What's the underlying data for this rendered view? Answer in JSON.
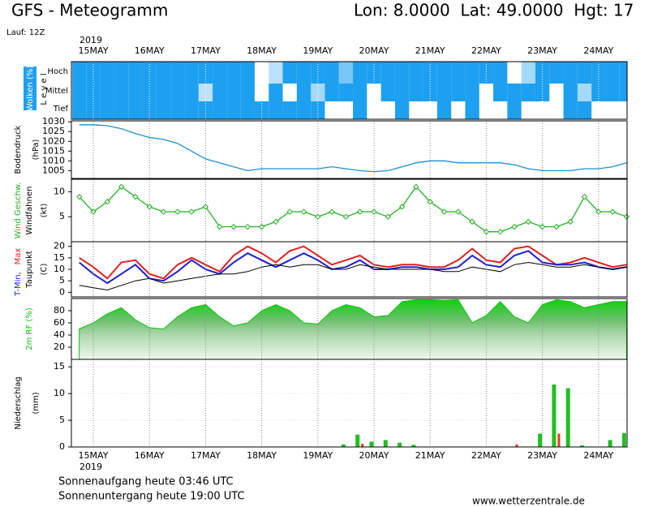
{
  "header": {
    "title": "GFS - Meteogramm",
    "location": "Lon: 8.0000  Lat: 49.0000  Hgt: 17",
    "run": "Lauf: 12Z",
    "year": "2019"
  },
  "chart_data": [
    {
      "type": "clouds",
      "y_label": "Wolken (%)",
      "level_label": "L e v e l",
      "color": "#1ea0f0",
      "series": [
        {
          "name": "Hoch",
          "values": [
            100,
            100,
            100,
            100,
            100,
            100,
            100,
            100,
            100,
            100,
            100,
            100,
            100,
            0,
            30,
            100,
            100,
            100,
            100,
            60,
            100,
            100,
            100,
            100,
            100,
            100,
            100,
            100,
            100,
            100,
            100,
            0,
            40,
            100,
            100,
            100,
            100,
            100,
            100,
            100
          ]
        },
        {
          "name": "Mittel",
          "values": [
            100,
            100,
            100,
            100,
            100,
            100,
            100,
            100,
            100,
            30,
            100,
            100,
            100,
            0,
            100,
            0,
            100,
            40,
            100,
            100,
            100,
            0,
            100,
            100,
            100,
            100,
            100,
            100,
            100,
            0,
            100,
            100,
            100,
            100,
            0,
            100,
            40,
            100,
            100,
            100
          ]
        },
        {
          "name": "Tief",
          "values": [
            100,
            100,
            100,
            100,
            100,
            100,
            100,
            100,
            100,
            100,
            100,
            100,
            100,
            100,
            100,
            100,
            100,
            100,
            0,
            0,
            100,
            0,
            0,
            100,
            0,
            0,
            100,
            0,
            100,
            0,
            0,
            100,
            0,
            0,
            0,
            100,
            100,
            0,
            0,
            0
          ]
        }
      ]
    },
    {
      "type": "line",
      "y_label": [
        "Bodendruck",
        "(hPa)"
      ],
      "color": "#1e90d0",
      "values": [
        1028.5,
        1028.5,
        1028,
        1026.5,
        1024,
        1022,
        1021,
        1019,
        1015,
        1011,
        1009,
        1007,
        1005,
        1006,
        1006,
        1006,
        1006,
        1006,
        1007,
        1006,
        1005,
        1004.5,
        1005,
        1007,
        1009,
        1010,
        1010,
        1009,
        1009,
        1009,
        1009,
        1008,
        1006,
        1005,
        1005,
        1005,
        1006,
        1006,
        1007,
        1009
      ],
      "ylim": [
        1001,
        1030.5
      ],
      "yticks": [
        1005,
        1010,
        1015,
        1020,
        1025,
        1030
      ]
    },
    {
      "type": "line",
      "y_label": [
        "Wind Geschw.",
        "Windfahnen",
        "(kt)"
      ],
      "color": "#22b022",
      "markers": true,
      "values": [
        9,
        6,
        8,
        11,
        9,
        7,
        6,
        6,
        6,
        7,
        3,
        3,
        3,
        3,
        4,
        6,
        6,
        5,
        6,
        5,
        6,
        6,
        5,
        7,
        11,
        8,
        6,
        6,
        4,
        2,
        2,
        3,
        4,
        3,
        3,
        4,
        9,
        6,
        6,
        5
      ],
      "ylim": [
        0,
        12.5
      ],
      "yticks": [
        5,
        10
      ]
    },
    {
      "type": "multiline",
      "y_label": [
        "T-Min,",
        "Max",
        "Taupunkt",
        "(C)"
      ],
      "series": [
        {
          "color": "#e02020",
          "values": [
            15,
            11,
            6,
            13,
            14,
            8,
            6,
            12,
            15,
            12,
            9,
            16,
            20,
            17,
            13,
            18,
            20,
            16,
            12,
            14,
            16,
            12,
            11,
            12,
            12,
            11,
            11,
            14,
            19,
            14,
            13,
            19,
            20,
            16,
            12,
            13,
            15,
            13,
            11,
            12
          ]
        },
        {
          "color": "#2020d0",
          "values": [
            13,
            8,
            4,
            8,
            12,
            6,
            5,
            9,
            14,
            10,
            8,
            13,
            17,
            14,
            11,
            14,
            17,
            14,
            10,
            11,
            14,
            10,
            10,
            11,
            11,
            10,
            10,
            11,
            16,
            12,
            11,
            16,
            18,
            13,
            12,
            12,
            13,
            11,
            10,
            11
          ]
        },
        {
          "color": "#000000",
          "values": [
            3,
            2,
            1,
            3,
            5,
            6,
            4,
            5,
            6,
            7,
            8,
            8,
            9,
            11,
            12,
            11,
            12,
            12,
            10,
            10,
            12,
            11,
            10,
            10,
            10,
            10,
            9,
            9,
            11,
            10,
            9,
            12,
            13,
            12,
            11,
            11,
            12,
            11,
            10,
            11
          ]
        }
      ],
      "ylim": [
        -2,
        22
      ],
      "yticks": [
        0,
        5,
        10,
        15,
        20
      ]
    },
    {
      "type": "area",
      "y_label": "2m RF (%)",
      "color": "#10c010",
      "values": [
        50,
        60,
        75,
        85,
        65,
        52,
        50,
        70,
        85,
        90,
        70,
        55,
        60,
        80,
        90,
        80,
        60,
        58,
        80,
        90,
        85,
        70,
        72,
        95,
        98,
        98,
        97,
        98,
        60,
        72,
        95,
        70,
        60,
        90,
        98,
        95,
        85,
        90,
        95,
        95
      ],
      "ylim": [
        0,
        100
      ],
      "yticks": [
        20,
        40,
        60,
        80
      ]
    },
    {
      "type": "bar",
      "y_label": [
        "Niederschlag",
        "(mm)"
      ],
      "categories": [
        null,
        "15MAY",
        null,
        null,
        null,
        "16MAY",
        null,
        null,
        null,
        "17MAY",
        null,
        null,
        null,
        "18MAY",
        null,
        null,
        null,
        "19MAY",
        null,
        null,
        null,
        "20MAY",
        null,
        null,
        null,
        "21MAY",
        null,
        null,
        null,
        "22MAY",
        null,
        null,
        null,
        "23MAY",
        null,
        null,
        null,
        "24MAY",
        null,
        null
      ],
      "series": [
        {
          "color": "#20c020",
          "values": [
            0,
            0,
            0,
            0,
            0,
            0,
            0,
            0,
            0,
            0,
            0,
            0,
            0,
            0,
            0,
            0,
            0,
            0,
            0,
            0.5,
            2.3,
            1.0,
            1.3,
            0.8,
            0.4,
            0,
            0,
            0,
            0,
            0,
            0,
            0,
            0,
            2.5,
            11.7,
            11.0,
            0.3,
            0,
            1.3,
            2.6
          ]
        },
        {
          "color": "#e04020",
          "values": [
            0,
            0,
            0,
            0,
            0,
            0,
            0,
            0,
            0,
            0,
            0,
            0,
            0,
            0,
            0,
            0,
            0,
            0,
            0,
            0,
            0.6,
            0,
            0,
            0,
            0,
            0,
            0,
            0,
            0,
            0,
            0,
            0.5,
            0,
            0,
            2.5,
            0,
            0,
            0,
            0,
            0
          ]
        }
      ],
      "ylim": [
        0,
        16.4
      ],
      "yticks": [
        0,
        5,
        10,
        15
      ]
    }
  ],
  "footer": {
    "sunrise": "Sonnenaufgang heute 03:46 UTC",
    "sunset": "Sonnenuntergang heute 19:00 UTC",
    "source": "www.wetterzentrale.de"
  }
}
